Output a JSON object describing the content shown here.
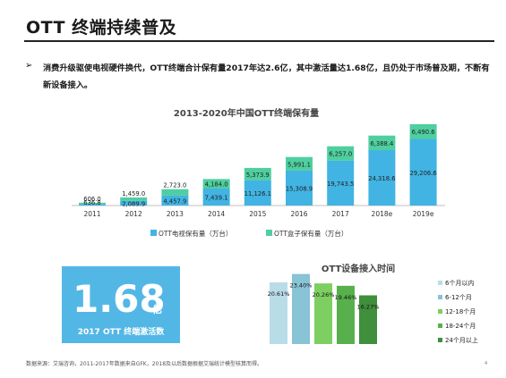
{
  "page": {
    "title": "OTT 终端持续普及",
    "bullet_marker": "➢",
    "bullet_text": "消费升级驱使电视硬件换代，OTT终端合计保有量2017年达2.6亿，其中激活量达1.68亿，且仍处于市场普及期，不断有新设备接入。",
    "source": "数据来源：艾瑞咨询，2011-2017年数据来自GFK，2018及以后数据根据艾瑞统计模型核算而得。",
    "page_number": "4"
  },
  "highlight": {
    "value": "1.68",
    "unit": "亿",
    "caption": "2017 OTT 终端激活数",
    "color": "#53b7e6"
  },
  "chart_data": [
    {
      "type": "bar",
      "stacked": true,
      "title": "2013-2020年中国OTT终端保有量",
      "categories": [
        "2011",
        "2012",
        "2013",
        "2014",
        "2015",
        "2016",
        "2017",
        "2018e",
        "2019e"
      ],
      "series": [
        {
          "name": "OTT电视保有量（万台）",
          "color": "#41b4e3",
          "values": [
            636.8,
            2089.9,
            4457.9,
            7439.1,
            11126.1,
            15308.9,
            19743.5,
            24318.6,
            29206.6
          ],
          "labels": [
            "636.8",
            "2,089.9",
            "4,457.9",
            "7,439.1",
            "11,126.1",
            "15,308.9",
            "19,743.5",
            "24,318.6",
            "29,206.6"
          ]
        },
        {
          "name": "OTT盒子保有量（万台）",
          "color": "#4fcfa0",
          "values": [
            606.0,
            1459.0,
            2723.0,
            4184.0,
            5373.9,
            5991.1,
            6257.0,
            6388.4,
            6490.6
          ],
          "labels": [
            "606.0",
            "1,459.0",
            "2,723.0",
            "4,184.0",
            "5,373.9",
            "5,991.1",
            "6,257.0",
            "6,388.4",
            "6,490.6"
          ]
        }
      ],
      "legend": "bottom",
      "grid": false
    },
    {
      "type": "bar",
      "title": "OTT设备接入时间",
      "categories": [
        "6个月以内",
        "6-12个月",
        "12-18个月",
        "18-24个月",
        "24个月以上"
      ],
      "values": [
        20.61,
        23.4,
        20.26,
        19.46,
        16.27
      ],
      "labels": [
        "20.61%",
        "23.40%",
        "20.26%",
        "19.46%",
        "16.27%"
      ],
      "colors": [
        "#b9dce9",
        "#88c3d6",
        "#7dcf61",
        "#58b04c",
        "#3f8f3c"
      ],
      "legend": "right",
      "grid": false
    }
  ]
}
